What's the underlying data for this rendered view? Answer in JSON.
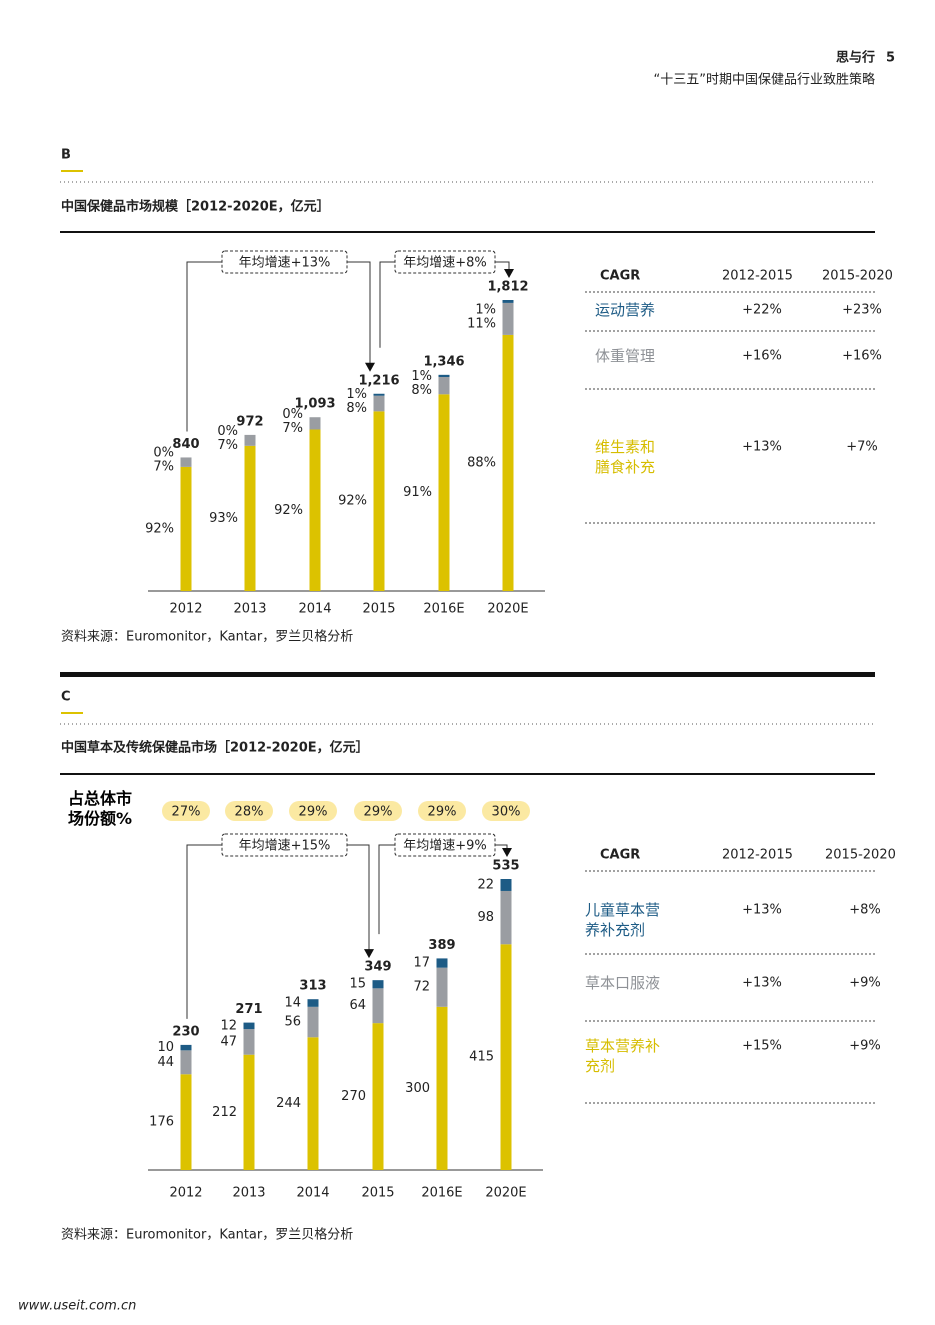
{
  "header": {
    "title": "思与行",
    "page": "5",
    "subtitle": "“十三五”时期中国保健品行业致胜策略"
  },
  "sections": [
    {
      "letter": "B",
      "title": "中国保健品市场规模［2012-2020E，亿元］",
      "source": "资料来源：Euromonitor，Kantar，罗兰贝格分析",
      "table": {
        "header": [
          "CAGR",
          "2012-2015",
          "2015-2020"
        ],
        "rows": [
          {
            "label": "运动营养",
            "color": "#1d5b85",
            "values": [
              "+22%",
              "+23%"
            ]
          },
          {
            "label": "体重管理",
            "color": "#8e9196",
            "values": [
              "+16%",
              "+16%"
            ]
          },
          {
            "label": "维生素和膳食补充",
            "color": "#d6bd00",
            "values": [
              "+13%",
              "+7%"
            ]
          }
        ]
      }
    },
    {
      "letter": "C",
      "title": "中国草本及传统保健品市场［2012-2020E，亿元］",
      "source": "资料来源：Euromonitor，Kantar，罗兰贝格分析",
      "table": {
        "header": [
          "CAGR",
          "2012-2015",
          "2015-2020"
        ],
        "rows": [
          {
            "label": "儿童草本营养补充剂",
            "color": "#1d5b85",
            "values": [
              "+13%",
              "+8%"
            ]
          },
          {
            "label": "草本口服液",
            "color": "#8e9196",
            "values": [
              "+13%",
              "+9%"
            ]
          },
          {
            "label": "草本营养补充剂",
            "color": "#d6bd00",
            "values": [
              "+15%",
              "+9%"
            ]
          }
        ]
      }
    }
  ],
  "chart_data": [
    {
      "type": "bar",
      "stack": "percent",
      "categories": [
        "2012",
        "2013",
        "2014",
        "2015",
        "2016E",
        "2020E"
      ],
      "totals": [
        840,
        972,
        1093,
        1216,
        1346,
        1812
      ],
      "total_labels": [
        "840",
        "972",
        "1,093",
        "1,216",
        "1,346",
        "1,812"
      ],
      "series": [
        {
          "color": "#dcc200",
          "values": [
            92,
            93,
            92,
            92,
            91,
            88
          ],
          "value_labels": [
            "92%",
            "93%",
            "92%",
            "92%",
            "91%",
            "88%"
          ]
        },
        {
          "color": "#9a9da2",
          "values": [
            7,
            7,
            7,
            8,
            8,
            11
          ],
          "value_labels": [
            "7%",
            "7%",
            "7%",
            "8%",
            "8%",
            "11%"
          ]
        },
        {
          "color": "#1d5b85",
          "values": [
            0,
            0,
            0,
            1,
            1,
            1
          ],
          "value_labels": [
            "0%",
            "0%",
            "0%",
            "1%",
            "1%",
            "1%"
          ]
        }
      ],
      "annotations": [
        "年均增速+13%",
        "年均增速+8%"
      ]
    },
    {
      "type": "bar",
      "stack": "value",
      "categories": [
        "2012",
        "2013",
        "2014",
        "2015",
        "2016E",
        "2020E"
      ],
      "totals": [
        230,
        271,
        313,
        349,
        389,
        535
      ],
      "share_title": "占总体市场份额%",
      "share": [
        27,
        28,
        29,
        29,
        29,
        30
      ],
      "share_labels": [
        "27%",
        "28%",
        "29%",
        "29%",
        "29%",
        "30%"
      ],
      "series": [
        {
          "color": "#dcc200",
          "values": [
            176,
            212,
            244,
            270,
            300,
            415
          ]
        },
        {
          "color": "#9a9da2",
          "values": [
            44,
            47,
            56,
            64,
            72,
            98
          ]
        },
        {
          "color": "#1d5b85",
          "values": [
            10,
            12,
            14,
            15,
            17,
            22
          ]
        }
      ],
      "annotations": [
        "年均增速+15%",
        "年均增速+9%"
      ]
    }
  ],
  "watermark": "www.useit.com.cn"
}
